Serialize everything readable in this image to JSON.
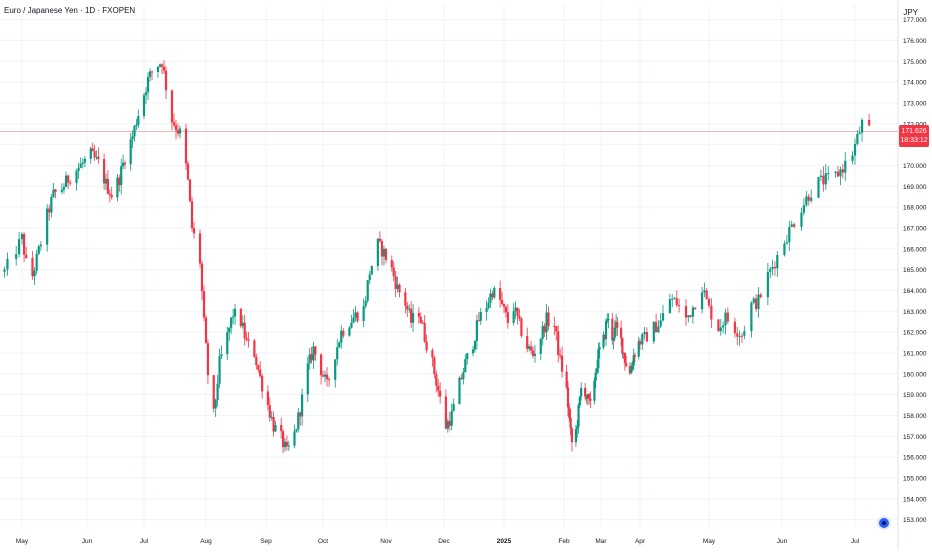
{
  "header": {
    "title": "Euro / Japanese Yen · 1D · FXOPEN",
    "currency": "JPY"
  },
  "price_badge": {
    "price": "171.626",
    "countdown": "18:33:12"
  },
  "colors": {
    "up": "#089981",
    "down": "#f23645",
    "grid": "#f0f3fa",
    "axis_text": "#131722",
    "price_line": "#f23645"
  },
  "chart_data": {
    "type": "candlestick",
    "title": "Euro / Japanese Yen · 1D · FXOPEN",
    "y_unit": "JPY",
    "ylim": [
      152.6,
      177.7
    ],
    "x_tick_labels": [
      "May",
      "Jun",
      "Jul",
      "Aug",
      "Sep",
      "Oct",
      "Nov",
      "Dec",
      "2025",
      "Feb",
      "Mar",
      "Apr",
      "May",
      "Jun",
      "Jul"
    ],
    "y_tick_labels": [
      "153.000",
      "154.000",
      "155.000",
      "156.000",
      "157.000",
      "158.000",
      "159.000",
      "160.000",
      "161.000",
      "162.000",
      "163.000",
      "164.000",
      "165.000",
      "166.000",
      "167.000",
      "168.000",
      "169.000",
      "170.000",
      "171.000",
      "172.000",
      "173.000",
      "174.000",
      "175.000",
      "176.000",
      "177.000"
    ],
    "last_price": 171.626,
    "grid": true,
    "close_series": [
      {
        "date": "2024-04-25",
        "close": 164.9
      },
      {
        "date": "2024-05-01",
        "close": 166.5
      },
      {
        "date": "2024-05-03",
        "close": 165.3
      },
      {
        "date": "2024-05-06",
        "close": 164.7
      },
      {
        "date": "2024-05-09",
        "close": 165.9
      },
      {
        "date": "2024-05-13",
        "close": 167.6
      },
      {
        "date": "2024-05-16",
        "close": 168.6
      },
      {
        "date": "2024-05-20",
        "close": 168.9
      },
      {
        "date": "2024-05-24",
        "close": 169.5
      },
      {
        "date": "2024-05-29",
        "close": 170.0
      },
      {
        "date": "2024-06-03",
        "close": 170.5
      },
      {
        "date": "2024-06-07",
        "close": 170.1
      },
      {
        "date": "2024-06-11",
        "close": 169.1
      },
      {
        "date": "2024-06-14",
        "close": 168.6
      },
      {
        "date": "2024-06-18",
        "close": 169.4
      },
      {
        "date": "2024-06-21",
        "close": 170.4
      },
      {
        "date": "2024-06-25",
        "close": 171.4
      },
      {
        "date": "2024-06-28",
        "close": 172.5
      },
      {
        "date": "2024-07-03",
        "close": 174.1
      },
      {
        "date": "2024-07-06",
        "close": 174.7
      },
      {
        "date": "2024-07-10",
        "close": 175.0
      },
      {
        "date": "2024-07-12",
        "close": 173.8
      },
      {
        "date": "2024-07-15",
        "close": 172.2
      },
      {
        "date": "2024-07-18",
        "close": 171.7
      },
      {
        "date": "2024-07-20",
        "close": 171.4
      },
      {
        "date": "2024-07-23",
        "close": 169.2
      },
      {
        "date": "2024-07-25",
        "close": 167.0
      },
      {
        "date": "2024-07-29",
        "close": 165.4
      },
      {
        "date": "2024-07-31",
        "close": 162.4
      },
      {
        "date": "2024-08-02",
        "close": 160.0
      },
      {
        "date": "2024-08-05",
        "close": 158.0
      },
      {
        "date": "2024-08-08",
        "close": 160.5
      },
      {
        "date": "2024-08-12",
        "close": 161.8
      },
      {
        "date": "2024-08-15",
        "close": 162.9
      },
      {
        "date": "2024-08-19",
        "close": 162.5
      },
      {
        "date": "2024-08-22",
        "close": 161.5
      },
      {
        "date": "2024-08-26",
        "close": 161.0
      },
      {
        "date": "2024-08-29",
        "close": 159.8
      },
      {
        "date": "2024-09-02",
        "close": 158.5
      },
      {
        "date": "2024-09-05",
        "close": 157.5
      },
      {
        "date": "2024-09-09",
        "close": 156.9
      },
      {
        "date": "2024-09-12",
        "close": 156.2
      },
      {
        "date": "2024-09-16",
        "close": 157.1
      },
      {
        "date": "2024-09-19",
        "close": 158.3
      },
      {
        "date": "2024-09-23",
        "close": 160.3
      },
      {
        "date": "2024-09-26",
        "close": 161.2
      },
      {
        "date": "2024-09-30",
        "close": 160.2
      },
      {
        "date": "2024-10-03",
        "close": 159.4
      },
      {
        "date": "2024-10-07",
        "close": 161.0
      },
      {
        "date": "2024-10-10",
        "close": 162.0
      },
      {
        "date": "2024-10-14",
        "close": 162.5
      },
      {
        "date": "2024-10-17",
        "close": 162.8
      },
      {
        "date": "2024-10-21",
        "close": 163.1
      },
      {
        "date": "2024-10-24",
        "close": 164.9
      },
      {
        "date": "2024-10-28",
        "close": 166.2
      },
      {
        "date": "2024-10-31",
        "close": 165.8
      },
      {
        "date": "2024-11-04",
        "close": 165.0
      },
      {
        "date": "2024-11-07",
        "close": 164.1
      },
      {
        "date": "2024-11-11",
        "close": 163.4
      },
      {
        "date": "2024-11-14",
        "close": 162.5
      },
      {
        "date": "2024-11-18",
        "close": 163.0
      },
      {
        "date": "2024-11-21",
        "close": 161.8
      },
      {
        "date": "2024-11-25",
        "close": 160.5
      },
      {
        "date": "2024-11-28",
        "close": 159.2
      },
      {
        "date": "2024-12-02",
        "close": 157.5
      },
      {
        "date": "2024-12-05",
        "close": 158.0
      },
      {
        "date": "2024-12-09",
        "close": 159.5
      },
      {
        "date": "2024-12-12",
        "close": 160.5
      },
      {
        "date": "2024-12-16",
        "close": 161.5
      },
      {
        "date": "2024-12-19",
        "close": 162.6
      },
      {
        "date": "2024-12-23",
        "close": 163.3
      },
      {
        "date": "2024-12-26",
        "close": 164.0
      },
      {
        "date": "2024-12-30",
        "close": 163.5
      },
      {
        "date": "2025-01-03",
        "close": 162.5
      },
      {
        "date": "2025-01-06",
        "close": 163.2
      },
      {
        "date": "2025-01-09",
        "close": 162.3
      },
      {
        "date": "2025-01-13",
        "close": 161.3
      },
      {
        "date": "2025-01-16",
        "close": 160.9
      },
      {
        "date": "2025-01-20",
        "close": 161.8
      },
      {
        "date": "2025-01-23",
        "close": 162.6
      },
      {
        "date": "2025-01-27",
        "close": 162.3
      },
      {
        "date": "2025-01-30",
        "close": 160.6
      },
      {
        "date": "2025-02-03",
        "close": 159.2
      },
      {
        "date": "2025-02-06",
        "close": 157.1
      },
      {
        "date": "2025-02-08",
        "close": 156.3
      },
      {
        "date": "2025-02-12",
        "close": 158.2
      },
      {
        "date": "2025-02-15",
        "close": 159.8
      },
      {
        "date": "2025-02-18",
        "close": 158.9
      },
      {
        "date": "2025-02-21",
        "close": 158.4
      },
      {
        "date": "2025-02-24",
        "close": 159.8
      },
      {
        "date": "2025-02-27",
        "close": 160.9
      },
      {
        "date": "2025-03-03",
        "close": 161.6
      },
      {
        "date": "2025-03-06",
        "close": 162.7
      },
      {
        "date": "2025-03-10",
        "close": 161.8
      },
      {
        "date": "2025-03-13",
        "close": 162.2
      },
      {
        "date": "2025-03-17",
        "close": 161.6
      },
      {
        "date": "2025-03-20",
        "close": 160.7
      },
      {
        "date": "2025-03-24",
        "close": 160.0
      },
      {
        "date": "2025-03-27",
        "close": 160.9
      },
      {
        "date": "2025-03-31",
        "close": 161.5
      },
      {
        "date": "2025-04-03",
        "close": 161.7
      },
      {
        "date": "2025-04-07",
        "close": 162.2
      },
      {
        "date": "2025-04-10",
        "close": 162.5
      },
      {
        "date": "2025-04-14",
        "close": 163.6
      },
      {
        "date": "2025-04-17",
        "close": 163.4
      },
      {
        "date": "2025-04-21",
        "close": 162.6
      },
      {
        "date": "2025-04-24",
        "close": 163.2
      },
      {
        "date": "2025-04-28",
        "close": 164.2
      },
      {
        "date": "2025-05-01",
        "close": 163.1
      },
      {
        "date": "2025-05-05",
        "close": 162.2
      },
      {
        "date": "2025-05-08",
        "close": 162.7
      },
      {
        "date": "2025-05-12",
        "close": 162.2
      },
      {
        "date": "2025-05-15",
        "close": 161.9
      },
      {
        "date": "2025-05-19",
        "close": 163.3
      },
      {
        "date": "2025-05-22",
        "close": 163.5
      },
      {
        "date": "2025-05-26",
        "close": 164.7
      },
      {
        "date": "2025-05-29",
        "close": 165.4
      },
      {
        "date": "2025-06-02",
        "close": 166.4
      },
      {
        "date": "2025-06-05",
        "close": 167.1
      },
      {
        "date": "2025-06-09",
        "close": 168.0
      },
      {
        "date": "2025-06-12",
        "close": 168.6
      },
      {
        "date": "2025-06-16",
        "close": 169.2
      },
      {
        "date": "2025-06-19",
        "close": 169.3
      },
      {
        "date": "2025-06-23",
        "close": 169.5
      },
      {
        "date": "2025-06-26",
        "close": 169.9
      },
      {
        "date": "2025-06-30",
        "close": 170.6
      },
      {
        "date": "2025-07-02",
        "close": 171.3
      },
      {
        "date": "2025-07-04",
        "close": 172.0
      },
      {
        "date": "2025-07-07",
        "close": 171.6
      }
    ]
  }
}
